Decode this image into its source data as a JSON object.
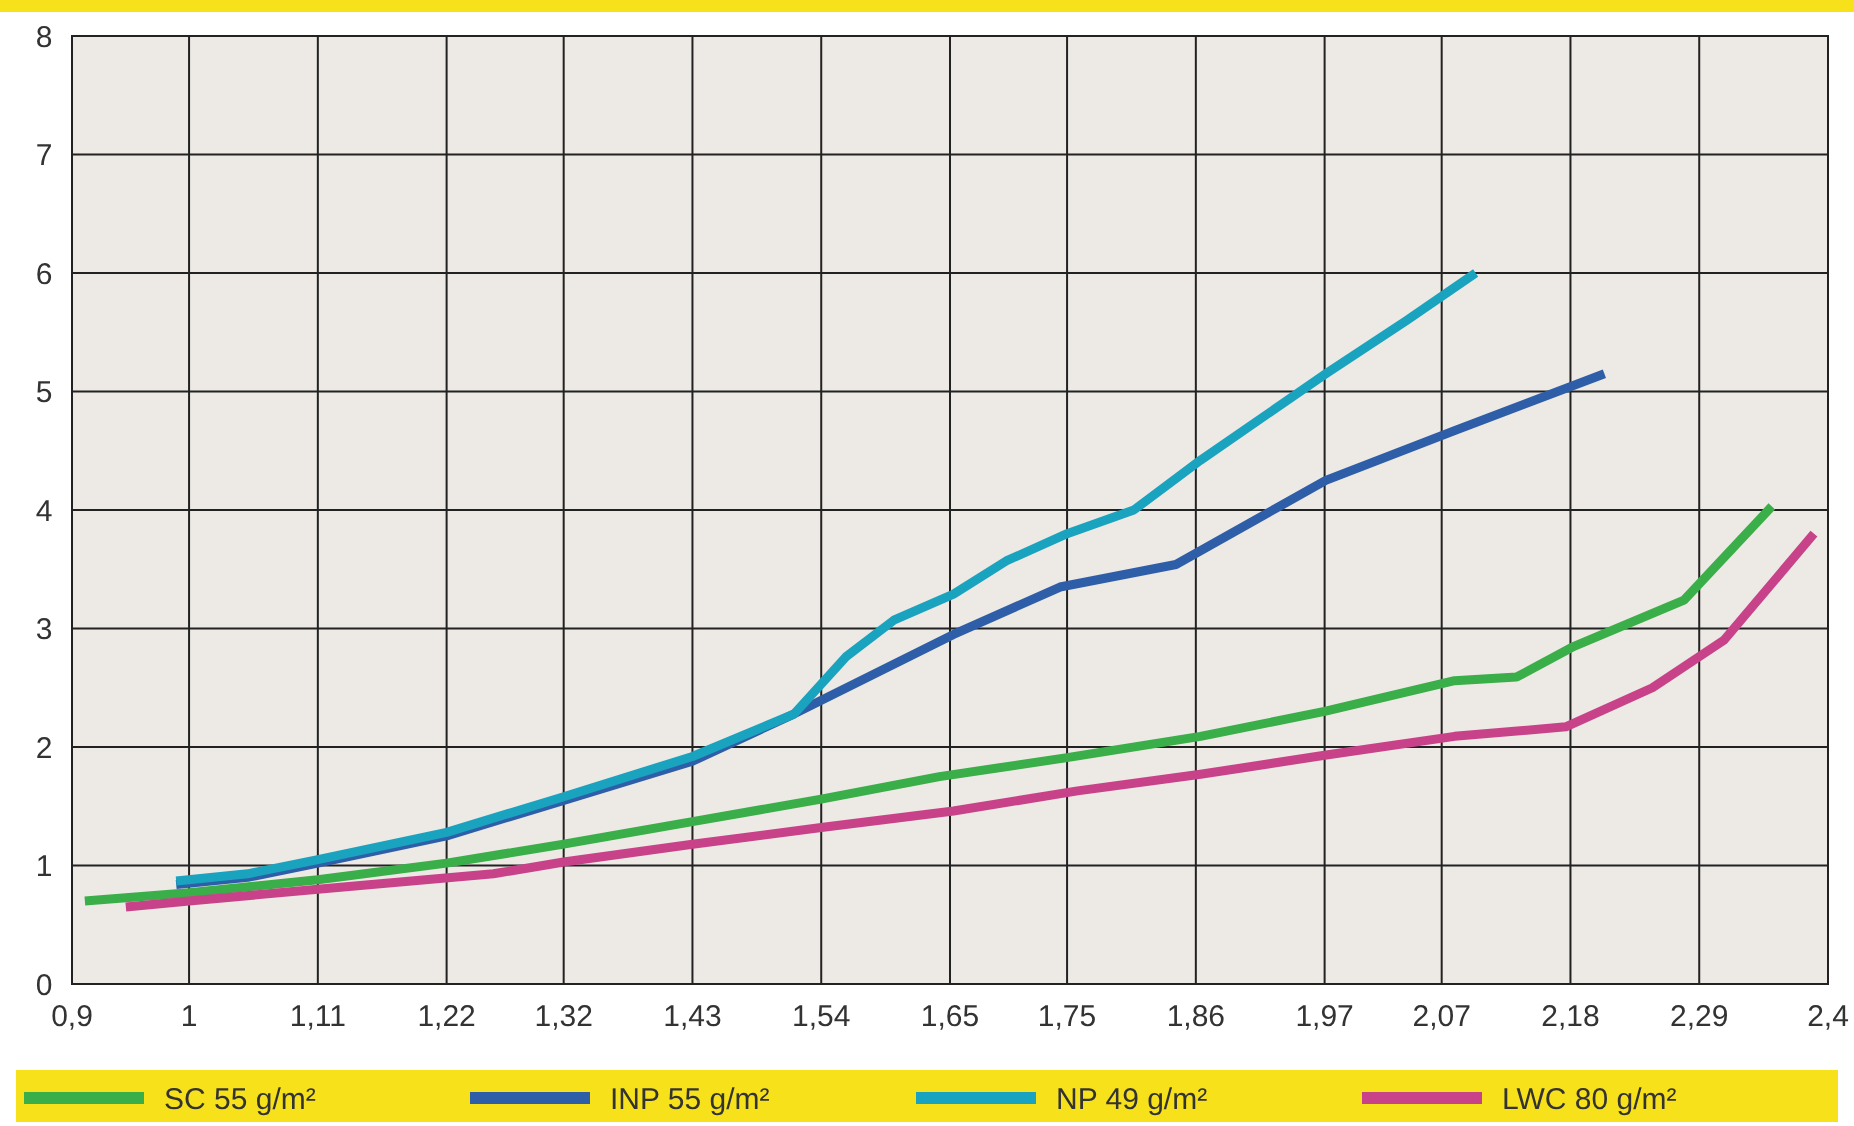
{
  "chart_data": {
    "type": "line",
    "xlim": [
      0.9,
      2.4
    ],
    "ylim": [
      0,
      8
    ],
    "xticks": [
      {
        "value": 0.9,
        "label": "0,9"
      },
      {
        "value": 1.0,
        "label": "1"
      },
      {
        "value": 1.11,
        "label": "1,11"
      },
      {
        "value": 1.22,
        "label": "1,22"
      },
      {
        "value": 1.32,
        "label": "1,32"
      },
      {
        "value": 1.43,
        "label": "1,43"
      },
      {
        "value": 1.54,
        "label": "1,54"
      },
      {
        "value": 1.65,
        "label": "1,65"
      },
      {
        "value": 1.75,
        "label": "1,75"
      },
      {
        "value": 1.86,
        "label": "1,86"
      },
      {
        "value": 1.97,
        "label": "1,97"
      },
      {
        "value": 2.07,
        "label": "2,07"
      },
      {
        "value": 2.18,
        "label": "2,18"
      },
      {
        "value": 2.29,
        "label": "2,29"
      },
      {
        "value": 2.4,
        "label": "2,4"
      }
    ],
    "yticks": [
      0,
      1,
      2,
      3,
      4,
      5,
      6,
      7,
      8
    ],
    "grid": true,
    "legend": "bottom",
    "marker": "none",
    "line_style": "solid",
    "series": [
      {
        "name": "SC 55 g/m²",
        "color": "#3aae48",
        "x": [
          0.911,
          1.0,
          1.11,
          1.22,
          1.32,
          1.43,
          1.54,
          1.641,
          1.75,
          1.864,
          1.97,
          2.081,
          2.134,
          2.183,
          2.277,
          2.352
        ],
        "values": [
          0.7,
          0.77,
          0.88,
          1.02,
          1.18,
          1.37,
          1.56,
          1.75,
          1.91,
          2.09,
          2.3,
          2.56,
          2.59,
          2.85,
          3.24,
          4.03
        ]
      },
      {
        "name": "INP 55 g/m²",
        "color": "#2e5ea8",
        "x": [
          0.989,
          1.05,
          1.11,
          1.22,
          1.32,
          1.43,
          1.517,
          1.653,
          1.744,
          1.843,
          1.971,
          2.081,
          2.209
        ],
        "values": [
          0.84,
          0.9,
          1.02,
          1.25,
          1.55,
          1.88,
          2.28,
          2.95,
          3.35,
          3.54,
          4.25,
          4.67,
          5.15
        ]
      },
      {
        "name": "NP 49 g/m²",
        "color": "#1aa3bf",
        "x": [
          0.989,
          1.05,
          1.11,
          1.22,
          1.32,
          1.43,
          1.517,
          1.561,
          1.602,
          1.653,
          1.698,
          1.75,
          1.807,
          1.864,
          1.971,
          2.04,
          2.099
        ],
        "values": [
          0.87,
          0.93,
          1.05,
          1.28,
          1.58,
          1.92,
          2.28,
          2.76,
          3.07,
          3.29,
          3.57,
          3.8,
          4.0,
          4.42,
          5.15,
          5.6,
          6.0
        ]
      },
      {
        "name": "LWC 80 g/m²",
        "color": "#c8428a",
        "x": [
          0.946,
          1.0,
          1.11,
          1.26,
          1.32,
          1.43,
          1.54,
          1.653,
          1.759,
          1.864,
          1.97,
          2.081,
          2.176,
          2.25,
          2.311,
          2.388
        ],
        "values": [
          0.65,
          0.7,
          0.8,
          0.93,
          1.03,
          1.18,
          1.32,
          1.46,
          1.63,
          1.77,
          1.93,
          2.09,
          2.17,
          2.5,
          2.9,
          3.8
        ]
      }
    ]
  }
}
